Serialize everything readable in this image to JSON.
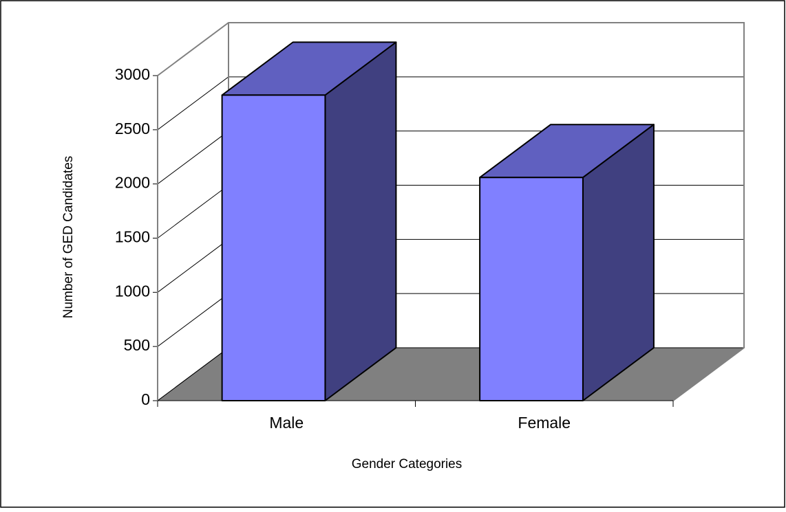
{
  "chart_data": {
    "type": "bar3d",
    "x_label": "Gender Categories",
    "y_label": "Number of GED Candidates",
    "categories": [
      "Male",
      "Female"
    ],
    "values": [
      2820,
      2060
    ],
    "colors": {
      "front": "#8080ff",
      "top": "#6060c0",
      "side": "#404080",
      "floor": "#808080"
    },
    "ylim": [
      0,
      3000
    ],
    "yticks": [
      0,
      500,
      1000,
      1500,
      2000,
      2500,
      3000
    ],
    "grid": true
  }
}
